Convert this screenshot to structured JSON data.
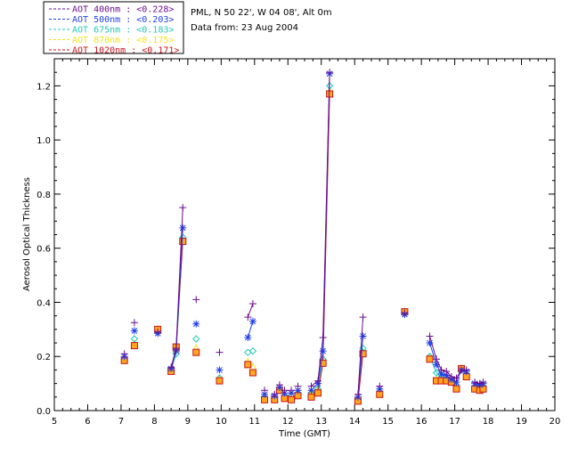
{
  "chart_data": {
    "type": "scatter",
    "title_lines": [
      "PML, N 50 22', W 04 08', Alt 0m",
      "Data from: 23 Aug 2004"
    ],
    "xlabel": "Time (GMT)",
    "ylabel": "Aerosol Optical Thickness",
    "xlim": [
      5,
      20
    ],
    "ylim": [
      0,
      1.3
    ],
    "x_ticks": [
      "5",
      "6",
      "7",
      "8",
      "9",
      "10",
      "11",
      "12",
      "13",
      "14",
      "15",
      "16",
      "17",
      "18",
      "19",
      "20"
    ],
    "y_ticks": [
      "0.0",
      "0.2",
      "0.4",
      "0.6",
      "0.8",
      "1.0",
      "1.2"
    ],
    "legend_placement": "top-left",
    "series": [
      {
        "name": "AOT  400nm : <0.228>",
        "color": "#6a0d8f",
        "marker": "plus",
        "points": [
          [
            7.1,
            0.21
          ],
          [
            7.4,
            0.325
          ],
          [
            8.1,
            0.29
          ],
          [
            8.5,
            0.16
          ],
          [
            8.65,
            0.23
          ],
          [
            8.85,
            0.75
          ],
          [
            9.25,
            0.41
          ],
          [
            9.95,
            0.215
          ],
          [
            10.8,
            0.345
          ],
          [
            10.95,
            0.395
          ],
          [
            11.3,
            0.075
          ],
          [
            11.6,
            0.06
          ],
          [
            11.75,
            0.095
          ],
          [
            11.9,
            0.075
          ],
          [
            12.1,
            0.075
          ],
          [
            12.3,
            0.09
          ],
          [
            12.7,
            0.09
          ],
          [
            12.9,
            0.11
          ],
          [
            13.05,
            0.27
          ],
          [
            13.25,
            1.25
          ],
          [
            14.1,
            0.06
          ],
          [
            14.25,
            0.345
          ],
          [
            14.75,
            0.09
          ],
          [
            15.5,
            0.36
          ],
          [
            16.25,
            0.275
          ],
          [
            16.45,
            0.19
          ],
          [
            16.6,
            0.15
          ],
          [
            16.75,
            0.145
          ],
          [
            16.9,
            0.125
          ],
          [
            17.05,
            0.12
          ],
          [
            17.2,
            0.15
          ],
          [
            17.35,
            0.15
          ],
          [
            17.6,
            0.105
          ],
          [
            17.75,
            0.1
          ],
          [
            17.85,
            0.105
          ]
        ],
        "lines": [
          [
            [
              8.5,
              0.16
            ],
            [
              8.65,
              0.23
            ],
            [
              8.85,
              0.75
            ]
          ],
          [
            [
              10.8,
              0.345
            ],
            [
              10.95,
              0.395
            ]
          ],
          [
            [
              12.7,
              0.09
            ],
            [
              12.9,
              0.11
            ],
            [
              13.05,
              0.27
            ],
            [
              13.25,
              1.25
            ]
          ],
          [
            [
              14.1,
              0.06
            ],
            [
              14.25,
              0.345
            ]
          ],
          [
            [
              16.25,
              0.275
            ],
            [
              16.45,
              0.19
            ],
            [
              16.6,
              0.15
            ],
            [
              16.75,
              0.145
            ],
            [
              16.9,
              0.125
            ],
            [
              17.05,
              0.12
            ],
            [
              17.2,
              0.15
            ],
            [
              17.35,
              0.15
            ]
          ],
          [
            [
              17.6,
              0.105
            ],
            [
              17.75,
              0.1
            ],
            [
              17.85,
              0.105
            ]
          ]
        ]
      },
      {
        "name": "AOT  500nm : <0.203>",
        "color": "#1f3fe6",
        "marker": "star",
        "points": [
          [
            7.1,
            0.2
          ],
          [
            7.4,
            0.295
          ],
          [
            8.1,
            0.285
          ],
          [
            8.5,
            0.155
          ],
          [
            8.65,
            0.22
          ],
          [
            8.85,
            0.675
          ],
          [
            9.25,
            0.32
          ],
          [
            9.95,
            0.15
          ],
          [
            10.8,
            0.27
          ],
          [
            10.95,
            0.33
          ],
          [
            11.3,
            0.06
          ],
          [
            11.6,
            0.055
          ],
          [
            11.75,
            0.085
          ],
          [
            11.9,
            0.065
          ],
          [
            12.1,
            0.065
          ],
          [
            12.3,
            0.075
          ],
          [
            12.7,
            0.075
          ],
          [
            12.9,
            0.1
          ],
          [
            13.05,
            0.22
          ],
          [
            13.25,
            1.245
          ],
          [
            14.1,
            0.05
          ],
          [
            14.25,
            0.275
          ],
          [
            14.75,
            0.08
          ],
          [
            15.5,
            0.355
          ],
          [
            16.25,
            0.25
          ],
          [
            16.45,
            0.17
          ],
          [
            16.6,
            0.135
          ],
          [
            16.75,
            0.13
          ],
          [
            16.9,
            0.115
          ],
          [
            17.05,
            0.105
          ],
          [
            17.2,
            0.15
          ],
          [
            17.35,
            0.145
          ],
          [
            17.6,
            0.1
          ],
          [
            17.75,
            0.095
          ],
          [
            17.85,
            0.1
          ]
        ],
        "lines": [
          [
            [
              8.5,
              0.155
            ],
            [
              8.65,
              0.22
            ],
            [
              8.85,
              0.675
            ]
          ],
          [
            [
              10.8,
              0.27
            ],
            [
              10.95,
              0.33
            ]
          ],
          [
            [
              12.7,
              0.075
            ],
            [
              12.9,
              0.1
            ],
            [
              13.05,
              0.22
            ],
            [
              13.25,
              1.245
            ]
          ],
          [
            [
              14.1,
              0.05
            ],
            [
              14.25,
              0.275
            ]
          ],
          [
            [
              16.25,
              0.25
            ],
            [
              16.45,
              0.17
            ],
            [
              16.6,
              0.135
            ],
            [
              16.75,
              0.13
            ],
            [
              16.9,
              0.115
            ],
            [
              17.05,
              0.105
            ],
            [
              17.2,
              0.15
            ],
            [
              17.35,
              0.145
            ]
          ],
          [
            [
              17.6,
              0.1
            ],
            [
              17.75,
              0.095
            ],
            [
              17.85,
              0.1
            ]
          ]
        ]
      },
      {
        "name": "AOT  675nm : <0.183>",
        "color": "#22c8b4",
        "marker": "diamond",
        "points": [
          [
            7.1,
            0.19
          ],
          [
            7.4,
            0.265
          ],
          [
            8.1,
            0.29
          ],
          [
            8.5,
            0.15
          ],
          [
            8.65,
            0.21
          ],
          [
            8.85,
            0.64
          ],
          [
            9.25,
            0.265
          ],
          [
            9.95,
            0.12
          ],
          [
            10.8,
            0.215
          ],
          [
            10.95,
            0.22
          ],
          [
            11.3,
            0.05
          ],
          [
            11.6,
            0.045
          ],
          [
            11.75,
            0.075
          ],
          [
            11.9,
            0.055
          ],
          [
            12.1,
            0.055
          ],
          [
            12.3,
            0.065
          ],
          [
            12.7,
            0.065
          ],
          [
            12.9,
            0.08
          ],
          [
            13.05,
            0.19
          ],
          [
            13.25,
            1.2
          ],
          [
            14.1,
            0.04
          ],
          [
            14.25,
            0.23
          ],
          [
            14.75,
            0.07
          ],
          [
            15.5,
            0.36
          ],
          [
            16.25,
            0.2
          ],
          [
            16.45,
            0.14
          ],
          [
            16.6,
            0.12
          ],
          [
            16.75,
            0.115
          ],
          [
            16.9,
            0.11
          ],
          [
            17.05,
            0.09
          ],
          [
            17.2,
            0.15
          ],
          [
            17.35,
            0.135
          ],
          [
            17.6,
            0.085
          ],
          [
            17.75,
            0.085
          ],
          [
            17.85,
            0.09
          ]
        ],
        "lines": [
          [
            [
              8.5,
              0.15
            ],
            [
              8.65,
              0.21
            ],
            [
              8.85,
              0.64
            ]
          ],
          [
            [
              12.7,
              0.065
            ],
            [
              12.9,
              0.08
            ],
            [
              13.05,
              0.19
            ],
            [
              13.25,
              1.2
            ]
          ],
          [
            [
              14.1,
              0.04
            ],
            [
              14.25,
              0.23
            ]
          ],
          [
            [
              16.25,
              0.2
            ],
            [
              16.45,
              0.14
            ],
            [
              16.6,
              0.12
            ],
            [
              16.75,
              0.115
            ],
            [
              16.9,
              0.11
            ],
            [
              17.05,
              0.09
            ]
          ]
        ]
      },
      {
        "name": "AOT  870nm : <0.175>",
        "color": "#f2e21e",
        "marker": "triangle",
        "points": [
          [
            7.1,
            0.19
          ],
          [
            7.4,
            0.245
          ],
          [
            8.1,
            0.3
          ],
          [
            8.5,
            0.145
          ],
          [
            8.65,
            0.225
          ],
          [
            8.85,
            0.63
          ],
          [
            9.25,
            0.23
          ],
          [
            9.95,
            0.115
          ],
          [
            10.8,
            0.18
          ],
          [
            10.95,
            0.16
          ],
          [
            11.3,
            0.045
          ],
          [
            11.6,
            0.045
          ],
          [
            11.75,
            0.075
          ],
          [
            11.9,
            0.05
          ],
          [
            12.1,
            0.045
          ],
          [
            12.3,
            0.06
          ],
          [
            12.7,
            0.06
          ],
          [
            12.9,
            0.075
          ],
          [
            13.05,
            0.18
          ],
          [
            13.25,
            1.18
          ],
          [
            14.1,
            0.04
          ],
          [
            14.25,
            0.215
          ],
          [
            14.75,
            0.065
          ],
          [
            15.5,
            0.365
          ],
          [
            16.25,
            0.195
          ],
          [
            16.45,
            0.115
          ],
          [
            16.6,
            0.115
          ],
          [
            16.75,
            0.11
          ],
          [
            16.9,
            0.11
          ],
          [
            17.05,
            0.085
          ],
          [
            17.2,
            0.155
          ],
          [
            17.35,
            0.13
          ],
          [
            17.6,
            0.085
          ],
          [
            17.75,
            0.08
          ],
          [
            17.85,
            0.085
          ]
        ],
        "lines": []
      },
      {
        "name": "AOT 1020nm : <0.171>",
        "color": "#c8141e",
        "marker": "square",
        "points": [
          [
            7.1,
            0.185
          ],
          [
            7.4,
            0.24
          ],
          [
            8.1,
            0.3
          ],
          [
            8.5,
            0.145
          ],
          [
            8.65,
            0.235
          ],
          [
            8.85,
            0.625
          ],
          [
            9.25,
            0.215
          ],
          [
            9.95,
            0.11
          ],
          [
            10.8,
            0.17
          ],
          [
            10.95,
            0.14
          ],
          [
            11.3,
            0.04
          ],
          [
            11.6,
            0.04
          ],
          [
            11.75,
            0.075
          ],
          [
            11.9,
            0.045
          ],
          [
            12.1,
            0.04
          ],
          [
            12.3,
            0.055
          ],
          [
            12.7,
            0.05
          ],
          [
            12.9,
            0.065
          ],
          [
            13.05,
            0.175
          ],
          [
            13.25,
            1.17
          ],
          [
            14.1,
            0.035
          ],
          [
            14.25,
            0.21
          ],
          [
            14.75,
            0.06
          ],
          [
            15.5,
            0.365
          ],
          [
            16.25,
            0.19
          ],
          [
            16.45,
            0.11
          ],
          [
            16.6,
            0.11
          ],
          [
            16.75,
            0.11
          ],
          [
            16.9,
            0.105
          ],
          [
            17.05,
            0.08
          ],
          [
            17.2,
            0.155
          ],
          [
            17.35,
            0.125
          ],
          [
            17.6,
            0.08
          ],
          [
            17.75,
            0.075
          ],
          [
            17.85,
            0.08
          ]
        ],
        "lines": [
          [
            [
              8.5,
              0.145
            ],
            [
              8.65,
              0.235
            ],
            [
              8.85,
              0.625
            ]
          ],
          [
            [
              12.7,
              0.05
            ],
            [
              12.9,
              0.065
            ],
            [
              13.05,
              0.175
            ],
            [
              13.25,
              1.17
            ]
          ],
          [
            [
              14.1,
              0.035
            ],
            [
              14.25,
              0.21
            ]
          ]
        ]
      }
    ]
  }
}
